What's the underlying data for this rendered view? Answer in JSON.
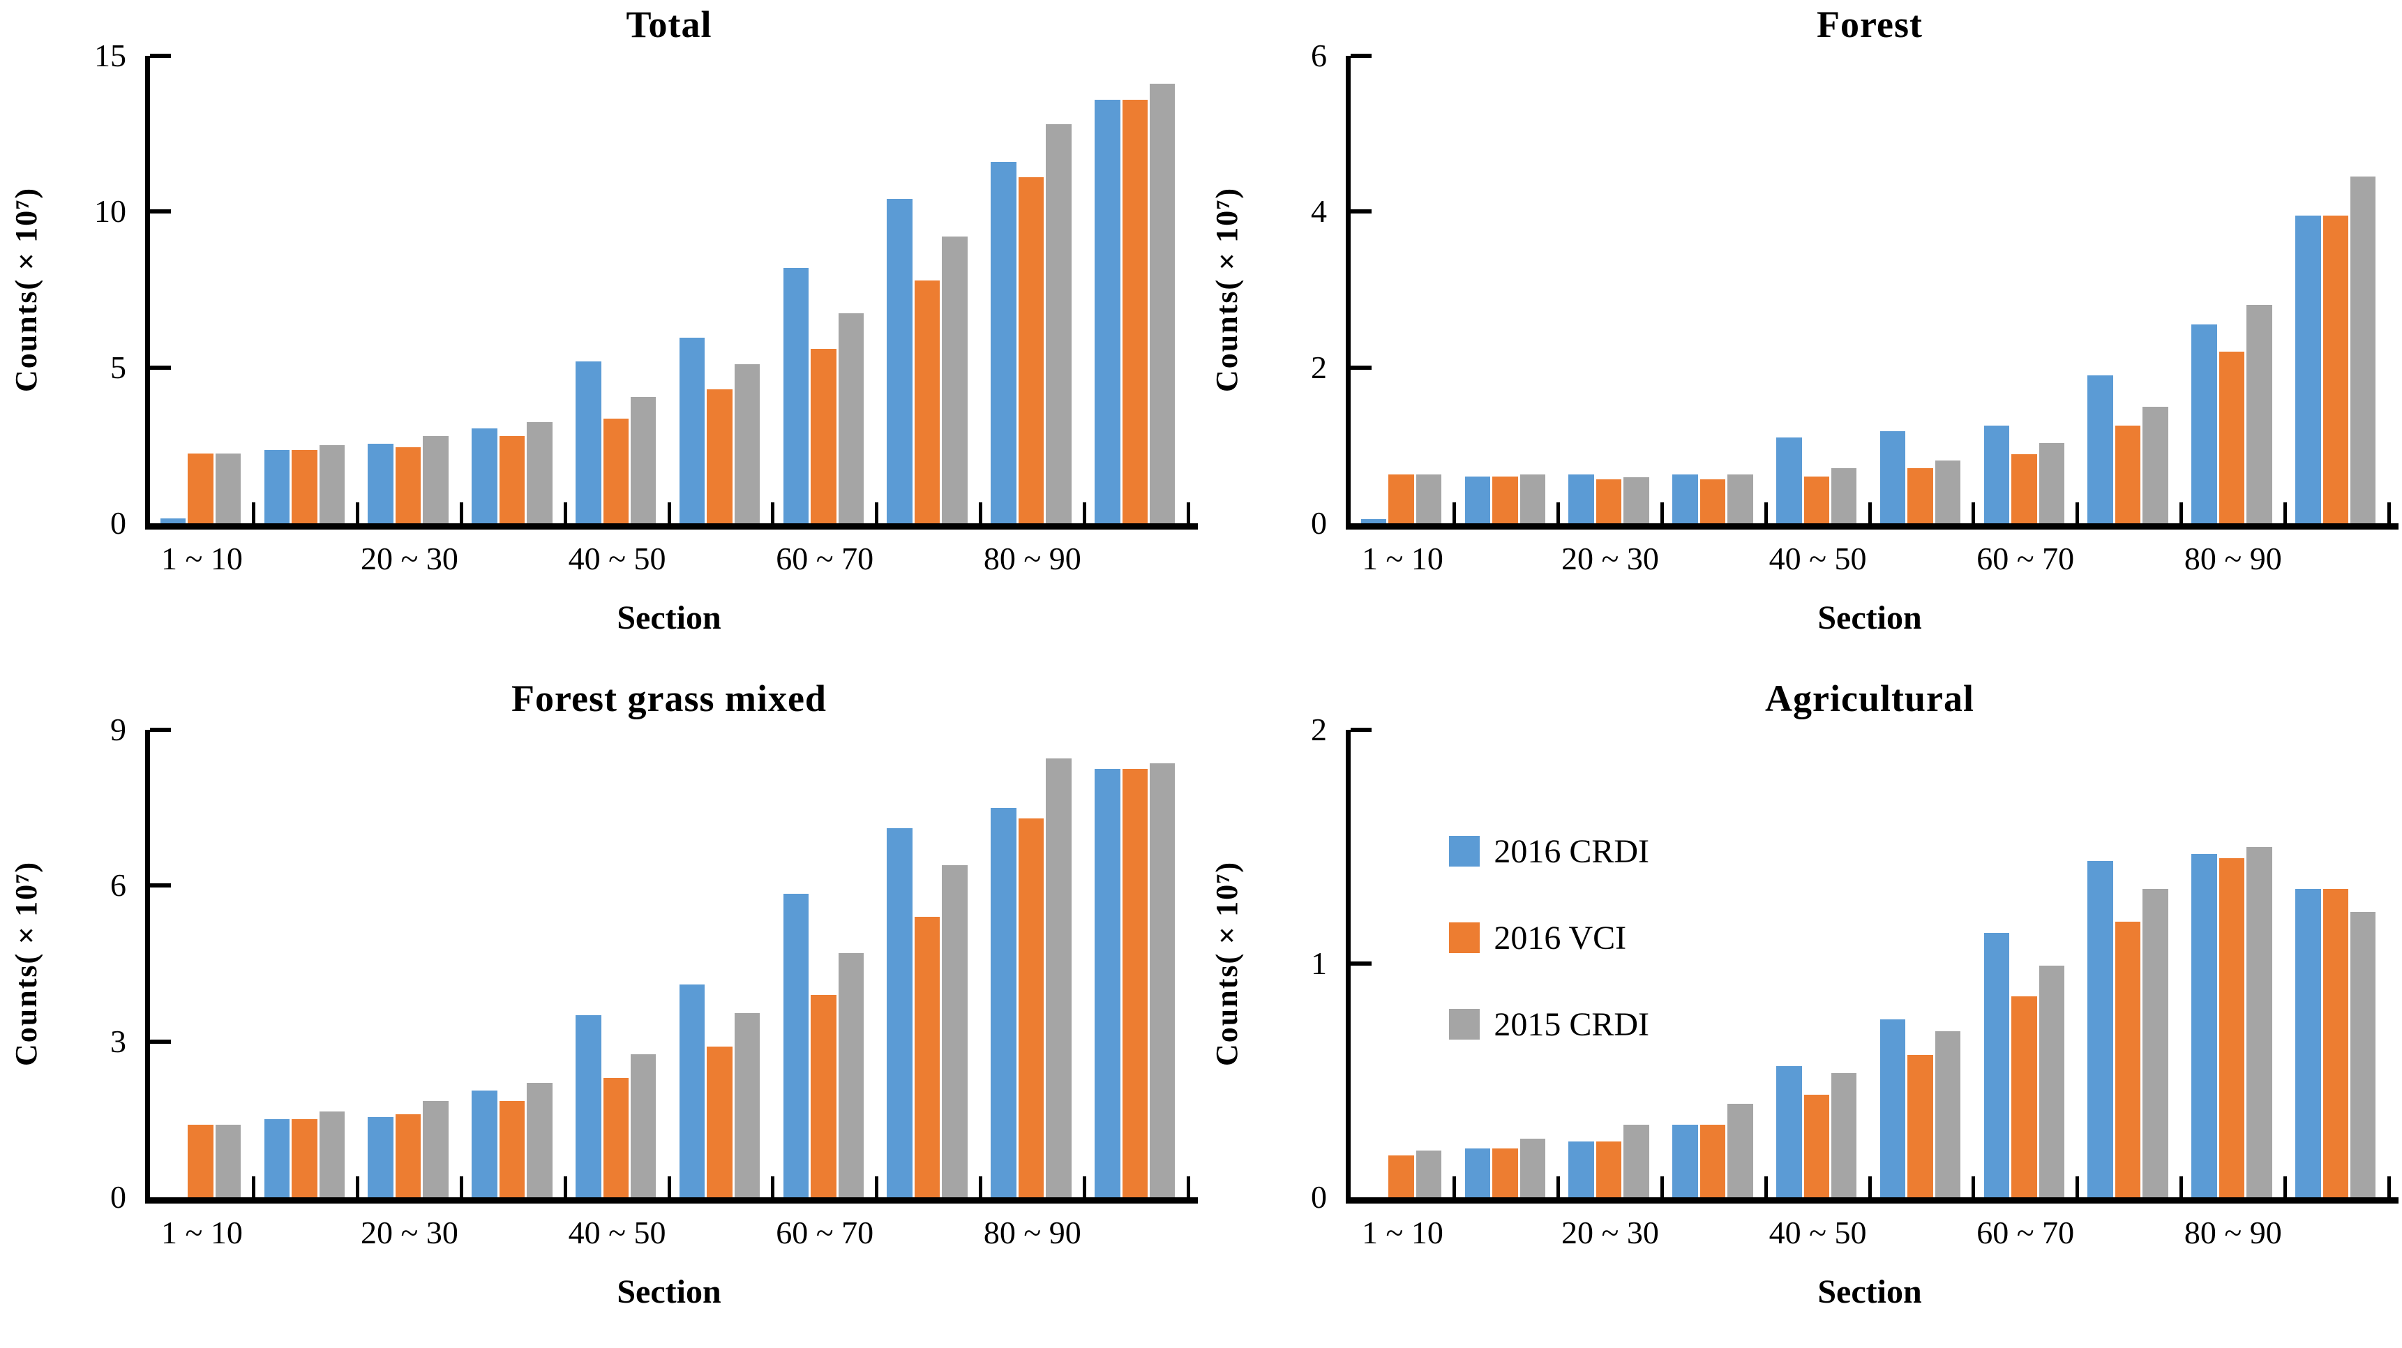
{
  "figure": {
    "background": "#ffffff",
    "x_axis_title": "Section",
    "y_axis_title": "Counts(×10⁷)",
    "x_tick_labels": [
      "1 ~ 10",
      "20 ~ 30",
      "40 ~ 50",
      "60 ~ 70",
      "80 ~ 90"
    ],
    "x_label_group_indices": [
      0,
      2,
      4,
      6,
      8
    ],
    "n_groups": 10,
    "colors": {
      "2016 CRDI": "#5B9BD5",
      "2016 VCI": "#ED7D31",
      "2015 CRDI": "#A5A5A5",
      "axis": "#000000",
      "text": "#000000"
    },
    "legend": {
      "entries": [
        "2016 CRDI",
        "2016 VCI",
        "2015 CRDI"
      ],
      "shown_in_panel": "Agricultural",
      "position": "inside plot, upper-left area, vertical list"
    }
  },
  "chart_data": [
    {
      "type": "bar",
      "title": "Total",
      "xlabel": "Section",
      "ylabel": "Counts(×10⁷)",
      "ylim": [
        0,
        15
      ],
      "yticks": [
        0,
        5,
        10,
        15
      ],
      "grid": false,
      "categories": [
        "1 ~ 10",
        "",
        "20 ~ 30",
        "",
        "40 ~ 50",
        "",
        "60 ~ 70",
        "",
        "80 ~ 90",
        ""
      ],
      "series": [
        {
          "name": "2016 CRDI",
          "values": [
            0.15,
            2.35,
            2.55,
            3.05,
            5.2,
            5.95,
            8.2,
            10.4,
            11.6,
            13.6
          ]
        },
        {
          "name": "2016 VCI",
          "values": [
            2.25,
            2.35,
            2.45,
            2.8,
            3.35,
            4.3,
            5.6,
            7.8,
            11.1,
            13.6
          ]
        },
        {
          "name": "2015 CRDI",
          "values": [
            2.25,
            2.5,
            2.8,
            3.25,
            4.05,
            5.1,
            6.75,
            9.2,
            12.8,
            14.1
          ]
        }
      ]
    },
    {
      "type": "bar",
      "title": "Forest",
      "xlabel": "Section",
      "ylabel": "Counts(×10⁷)",
      "ylim": [
        0,
        6
      ],
      "yticks": [
        0,
        2,
        4,
        6
      ],
      "grid": false,
      "categories": [
        "1 ~ 10",
        "",
        "20 ~ 30",
        "",
        "40 ~ 50",
        "",
        "60 ~ 70",
        "",
        "80 ~ 90",
        ""
      ],
      "series": [
        {
          "name": "2016 CRDI",
          "values": [
            0.05,
            0.6,
            0.63,
            0.63,
            1.1,
            1.18,
            1.25,
            1.9,
            2.55,
            3.95
          ]
        },
        {
          "name": "2016 VCI",
          "values": [
            0.63,
            0.6,
            0.56,
            0.56,
            0.6,
            0.71,
            0.89,
            1.25,
            2.2,
            3.95
          ]
        },
        {
          "name": "2015 CRDI",
          "values": [
            0.63,
            0.63,
            0.59,
            0.63,
            0.71,
            0.81,
            1.03,
            1.5,
            2.8,
            4.45
          ]
        }
      ]
    },
    {
      "type": "bar",
      "title": "Forest grass mixed",
      "xlabel": "Section",
      "ylabel": "Counts(×10⁷)",
      "ylim": [
        0,
        9
      ],
      "yticks": [
        0,
        3,
        6,
        9
      ],
      "grid": false,
      "categories": [
        "1 ~ 10",
        "",
        "20 ~ 30",
        "",
        "40 ~ 50",
        "",
        "60 ~ 70",
        "",
        "80 ~ 90",
        ""
      ],
      "series": [
        {
          "name": "2016 CRDI",
          "values": [
            0,
            1.5,
            1.55,
            2.05,
            3.5,
            4.1,
            5.85,
            7.1,
            7.5,
            8.25
          ]
        },
        {
          "name": "2016 VCI",
          "values": [
            1.4,
            1.5,
            1.6,
            1.85,
            2.3,
            2.9,
            3.9,
            5.4,
            7.3,
            8.25
          ]
        },
        {
          "name": "2015 CRDI",
          "values": [
            1.4,
            1.65,
            1.85,
            2.2,
            2.75,
            3.55,
            4.7,
            6.4,
            8.45,
            8.35
          ]
        }
      ]
    },
    {
      "type": "bar",
      "title": "Agricultural",
      "xlabel": "Section",
      "ylabel": "Counts(×10⁷)",
      "ylim": [
        0,
        2
      ],
      "yticks": [
        0,
        1,
        2
      ],
      "grid": false,
      "legend_shown": true,
      "categories": [
        "1 ~ 10",
        "",
        "20 ~ 30",
        "",
        "40 ~ 50",
        "",
        "60 ~ 70",
        "",
        "80 ~ 90",
        ""
      ],
      "series": [
        {
          "name": "2016 CRDI",
          "values": [
            0,
            0.21,
            0.24,
            0.31,
            0.56,
            0.76,
            1.13,
            1.44,
            1.47,
            1.32
          ]
        },
        {
          "name": "2016 VCI",
          "values": [
            0.18,
            0.21,
            0.24,
            0.31,
            0.44,
            0.61,
            0.86,
            1.18,
            1.45,
            1.32
          ]
        },
        {
          "name": "2015 CRDI",
          "values": [
            0.2,
            0.25,
            0.31,
            0.4,
            0.53,
            0.71,
            0.99,
            1.32,
            1.5,
            1.22
          ]
        }
      ]
    }
  ]
}
